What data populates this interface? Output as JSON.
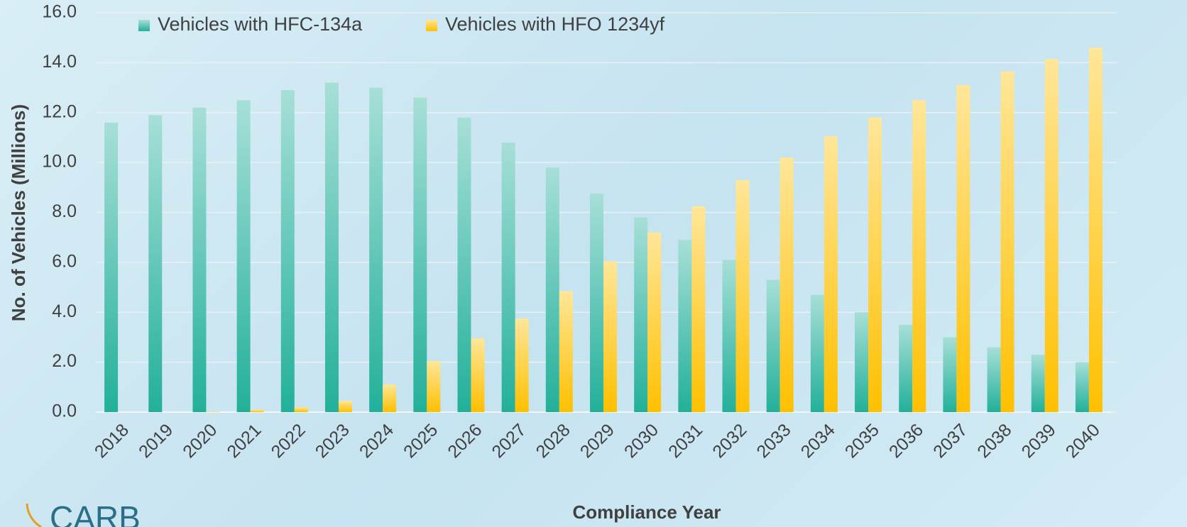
{
  "chart_data": {
    "type": "bar",
    "x_label": "Compliance Year",
    "y_label": "No. of Vehicles (Millions)",
    "logo": "CARB",
    "categories": [
      "2018",
      "2019",
      "2020",
      "2021",
      "2022",
      "2023",
      "2024",
      "2025",
      "2026",
      "2027",
      "2028",
      "2029",
      "2030",
      "2031",
      "2032",
      "2033",
      "2034",
      "2035",
      "2036",
      "2037",
      "2038",
      "2039",
      "2040"
    ],
    "series": [
      {
        "name": "Vehicles with HFC-134a",
        "color": "#22b09a",
        "values": [
          11.6,
          11.9,
          12.2,
          12.5,
          12.9,
          13.2,
          13.0,
          12.6,
          11.8,
          10.8,
          9.8,
          8.75,
          7.8,
          6.9,
          6.1,
          5.3,
          4.7,
          4.0,
          3.5,
          3.0,
          2.6,
          2.3,
          2.0
        ]
      },
      {
        "name": "Vehicles with HFO 1234yf",
        "color": "#ffc000",
        "values": [
          0,
          0,
          0.02,
          0.1,
          0.2,
          0.45,
          1.1,
          2.05,
          2.95,
          3.75,
          4.85,
          6.05,
          7.2,
          8.25,
          9.3,
          10.2,
          11.05,
          11.8,
          12.5,
          13.1,
          13.65,
          14.15,
          14.6
        ]
      }
    ],
    "ylim": [
      0,
      16
    ],
    "yticks": [
      {
        "value": 0,
        "label": "0.0"
      },
      {
        "value": 2,
        "label": "2.0"
      },
      {
        "value": 4,
        "label": "4.0"
      },
      {
        "value": 6,
        "label": "6.0"
      },
      {
        "value": 8,
        "label": "8.0"
      },
      {
        "value": 10,
        "label": "10.0"
      },
      {
        "value": 12,
        "label": "12.0"
      },
      {
        "value": 14,
        "label": "14.0"
      },
      {
        "value": 16,
        "label": "16.0"
      }
    ],
    "grid": true
  }
}
